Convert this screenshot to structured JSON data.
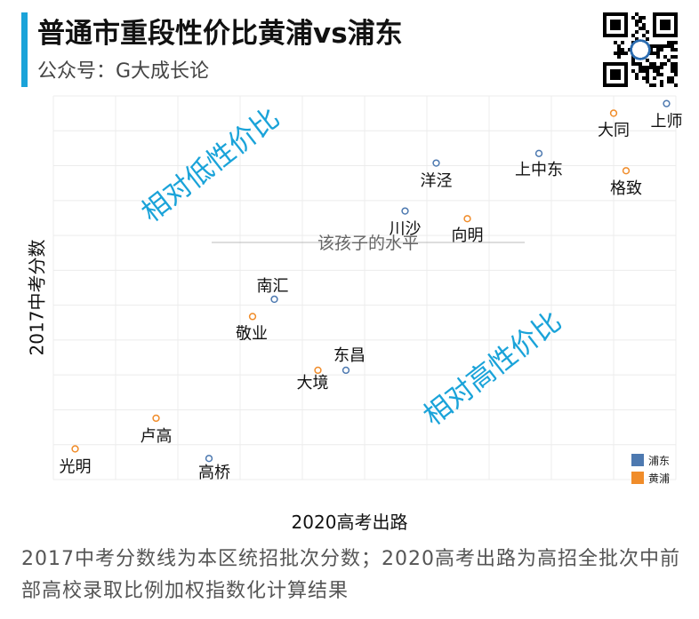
{
  "header": {
    "title": "普通市重段性价比黄浦vs浦东",
    "subtitle": "公众号：G大成长论"
  },
  "footnote": "2017中考分数线为本区统招批次分数；2020高考出路为高招全批次中前部高校录取比例加权指数化计算结果",
  "colors": {
    "accent": "#1aa3d9",
    "pudong": "#4d79b0",
    "huangpu": "#f08c2a",
    "annotation": "#1aa3d9"
  },
  "chart_data": {
    "type": "scatter",
    "xlabel": "2020高考出路",
    "ylabel": "2017中考分数",
    "xlim": [
      0,
      100
    ],
    "ylim": [
      0,
      100
    ],
    "grid": true,
    "legend": "bottom-right",
    "series": [
      {
        "name": "浦东",
        "color": "#4d79b0",
        "points": [
          {
            "label": "上师",
            "x": 98.5,
            "y": 98.0
          },
          {
            "label": "上中东",
            "x": 78.0,
            "y": 85.0
          },
          {
            "label": "洋泾",
            "x": 61.5,
            "y": 82.5
          },
          {
            "label": "川沙",
            "x": 56.5,
            "y": 70.0
          },
          {
            "label": "南汇",
            "x": 35.5,
            "y": 47.0
          },
          {
            "label": "东昌",
            "x": 47.0,
            "y": 28.5
          },
          {
            "label": "高桥",
            "x": 25.0,
            "y": 5.5
          }
        ]
      },
      {
        "name": "黄浦",
        "color": "#f08c2a",
        "points": [
          {
            "label": "大同",
            "x": 90.0,
            "y": 95.5
          },
          {
            "label": "格致",
            "x": 92.0,
            "y": 80.5
          },
          {
            "label": "向明",
            "x": 66.5,
            "y": 68.0
          },
          {
            "label": "敬业",
            "x": 32.0,
            "y": 42.5
          },
          {
            "label": "大境",
            "x": 42.5,
            "y": 28.5
          },
          {
            "label": "卢高",
            "x": 16.5,
            "y": 16.0
          },
          {
            "label": "光明",
            "x": 3.5,
            "y": 8.0
          }
        ]
      }
    ],
    "annotations": {
      "top_left": "相对低性价比",
      "bottom_right": "相对高性价比",
      "center_line": "该孩子的水平"
    }
  }
}
